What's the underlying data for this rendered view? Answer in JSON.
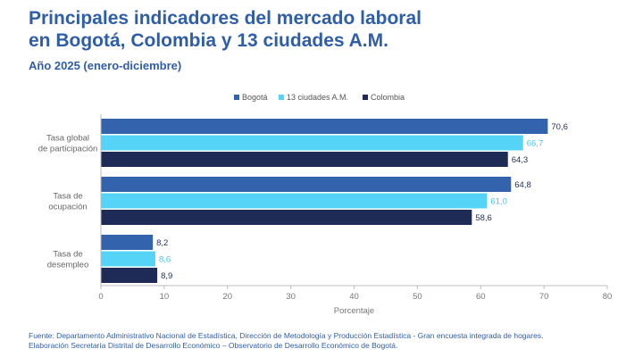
{
  "title_line1": "Principales indicadores del mercado laboral",
  "title_line2": "en Bogotá, Colombia y 13 ciudades A.M.",
  "subtitle": "Año 2025 (enero-diciembre)",
  "footer_line1": "Fuente: Departamento Administrativo Nacional de Estadística, Dirección de Metodología y Producción Estadística - Gran encuesta integrada de hogares.",
  "footer_line2": "Elaboración Secretaría Distrital de Desarrollo Económico – Observatorio de Desarrollo Económico de Bogotá.",
  "chart_data": {
    "type": "bar",
    "orientation": "horizontal",
    "categories": [
      [
        "Tasa global",
        "de participación"
      ],
      [
        "Tasa de",
        "ocupación"
      ],
      [
        "Tasa de",
        "desempleo"
      ]
    ],
    "series": [
      {
        "name": "Bogotá",
        "color": "#3463ad",
        "label_color": "#1f2d5a",
        "values": [
          70.6,
          64.8,
          8.2
        ],
        "labels": [
          "70,6",
          "64,8",
          "8,2"
        ]
      },
      {
        "name": "13 ciudades A.M.",
        "color": "#55d4f7",
        "label_color": "#3ec4ee",
        "values": [
          66.7,
          61.0,
          8.6
        ],
        "labels": [
          "66,7",
          "61,0",
          "8,6"
        ]
      },
      {
        "name": "Colombia",
        "color": "#1e2b57",
        "label_color": "#1e2b57",
        "values": [
          64.3,
          58.6,
          8.9
        ],
        "labels": [
          "64,3",
          "58,6",
          "8,9"
        ]
      }
    ],
    "xlabel": "Porcentaje",
    "xlim": [
      0,
      80
    ],
    "xticks": [
      0,
      10,
      20,
      30,
      40,
      50,
      60,
      70,
      80
    ],
    "legend_position": "top",
    "grid": false
  }
}
